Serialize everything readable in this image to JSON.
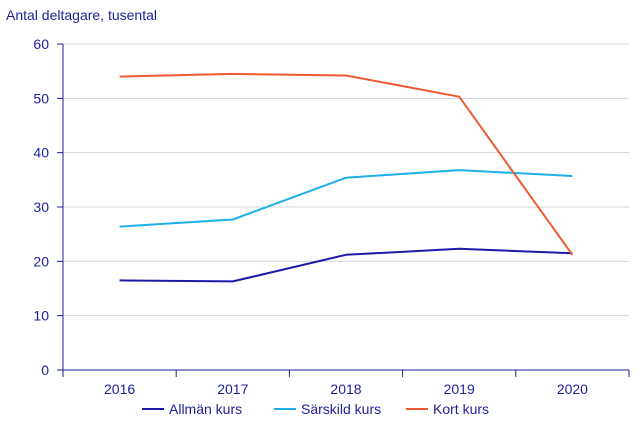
{
  "chart_data": {
    "type": "line",
    "title": "",
    "xlabel": "",
    "ylabel": "Antal deltagare, tusental",
    "categories": [
      "2016",
      "2017",
      "2018",
      "2019",
      "2020"
    ],
    "ylim": [
      0,
      60
    ],
    "yticks": [
      "0",
      "10",
      "20",
      "30",
      "40",
      "50",
      "60"
    ],
    "grid": true,
    "legend_position": "bottom",
    "series": [
      {
        "name": "Allmän kurs",
        "color": "#1a1aa6",
        "values": [
          16.5,
          16.3,
          21.2,
          22.3,
          21.5
        ]
      },
      {
        "name": "Särskild kurs",
        "color": "#1eaee8",
        "values": [
          26.4,
          27.7,
          35.4,
          36.8,
          35.7
        ]
      },
      {
        "name": "Kort kurs",
        "color": "#ee5a35",
        "values": [
          54.0,
          54.5,
          54.2,
          50.3,
          21.2
        ]
      }
    ],
    "axis_color": "#1f1f99",
    "grid_color": "#d5d5e0"
  }
}
